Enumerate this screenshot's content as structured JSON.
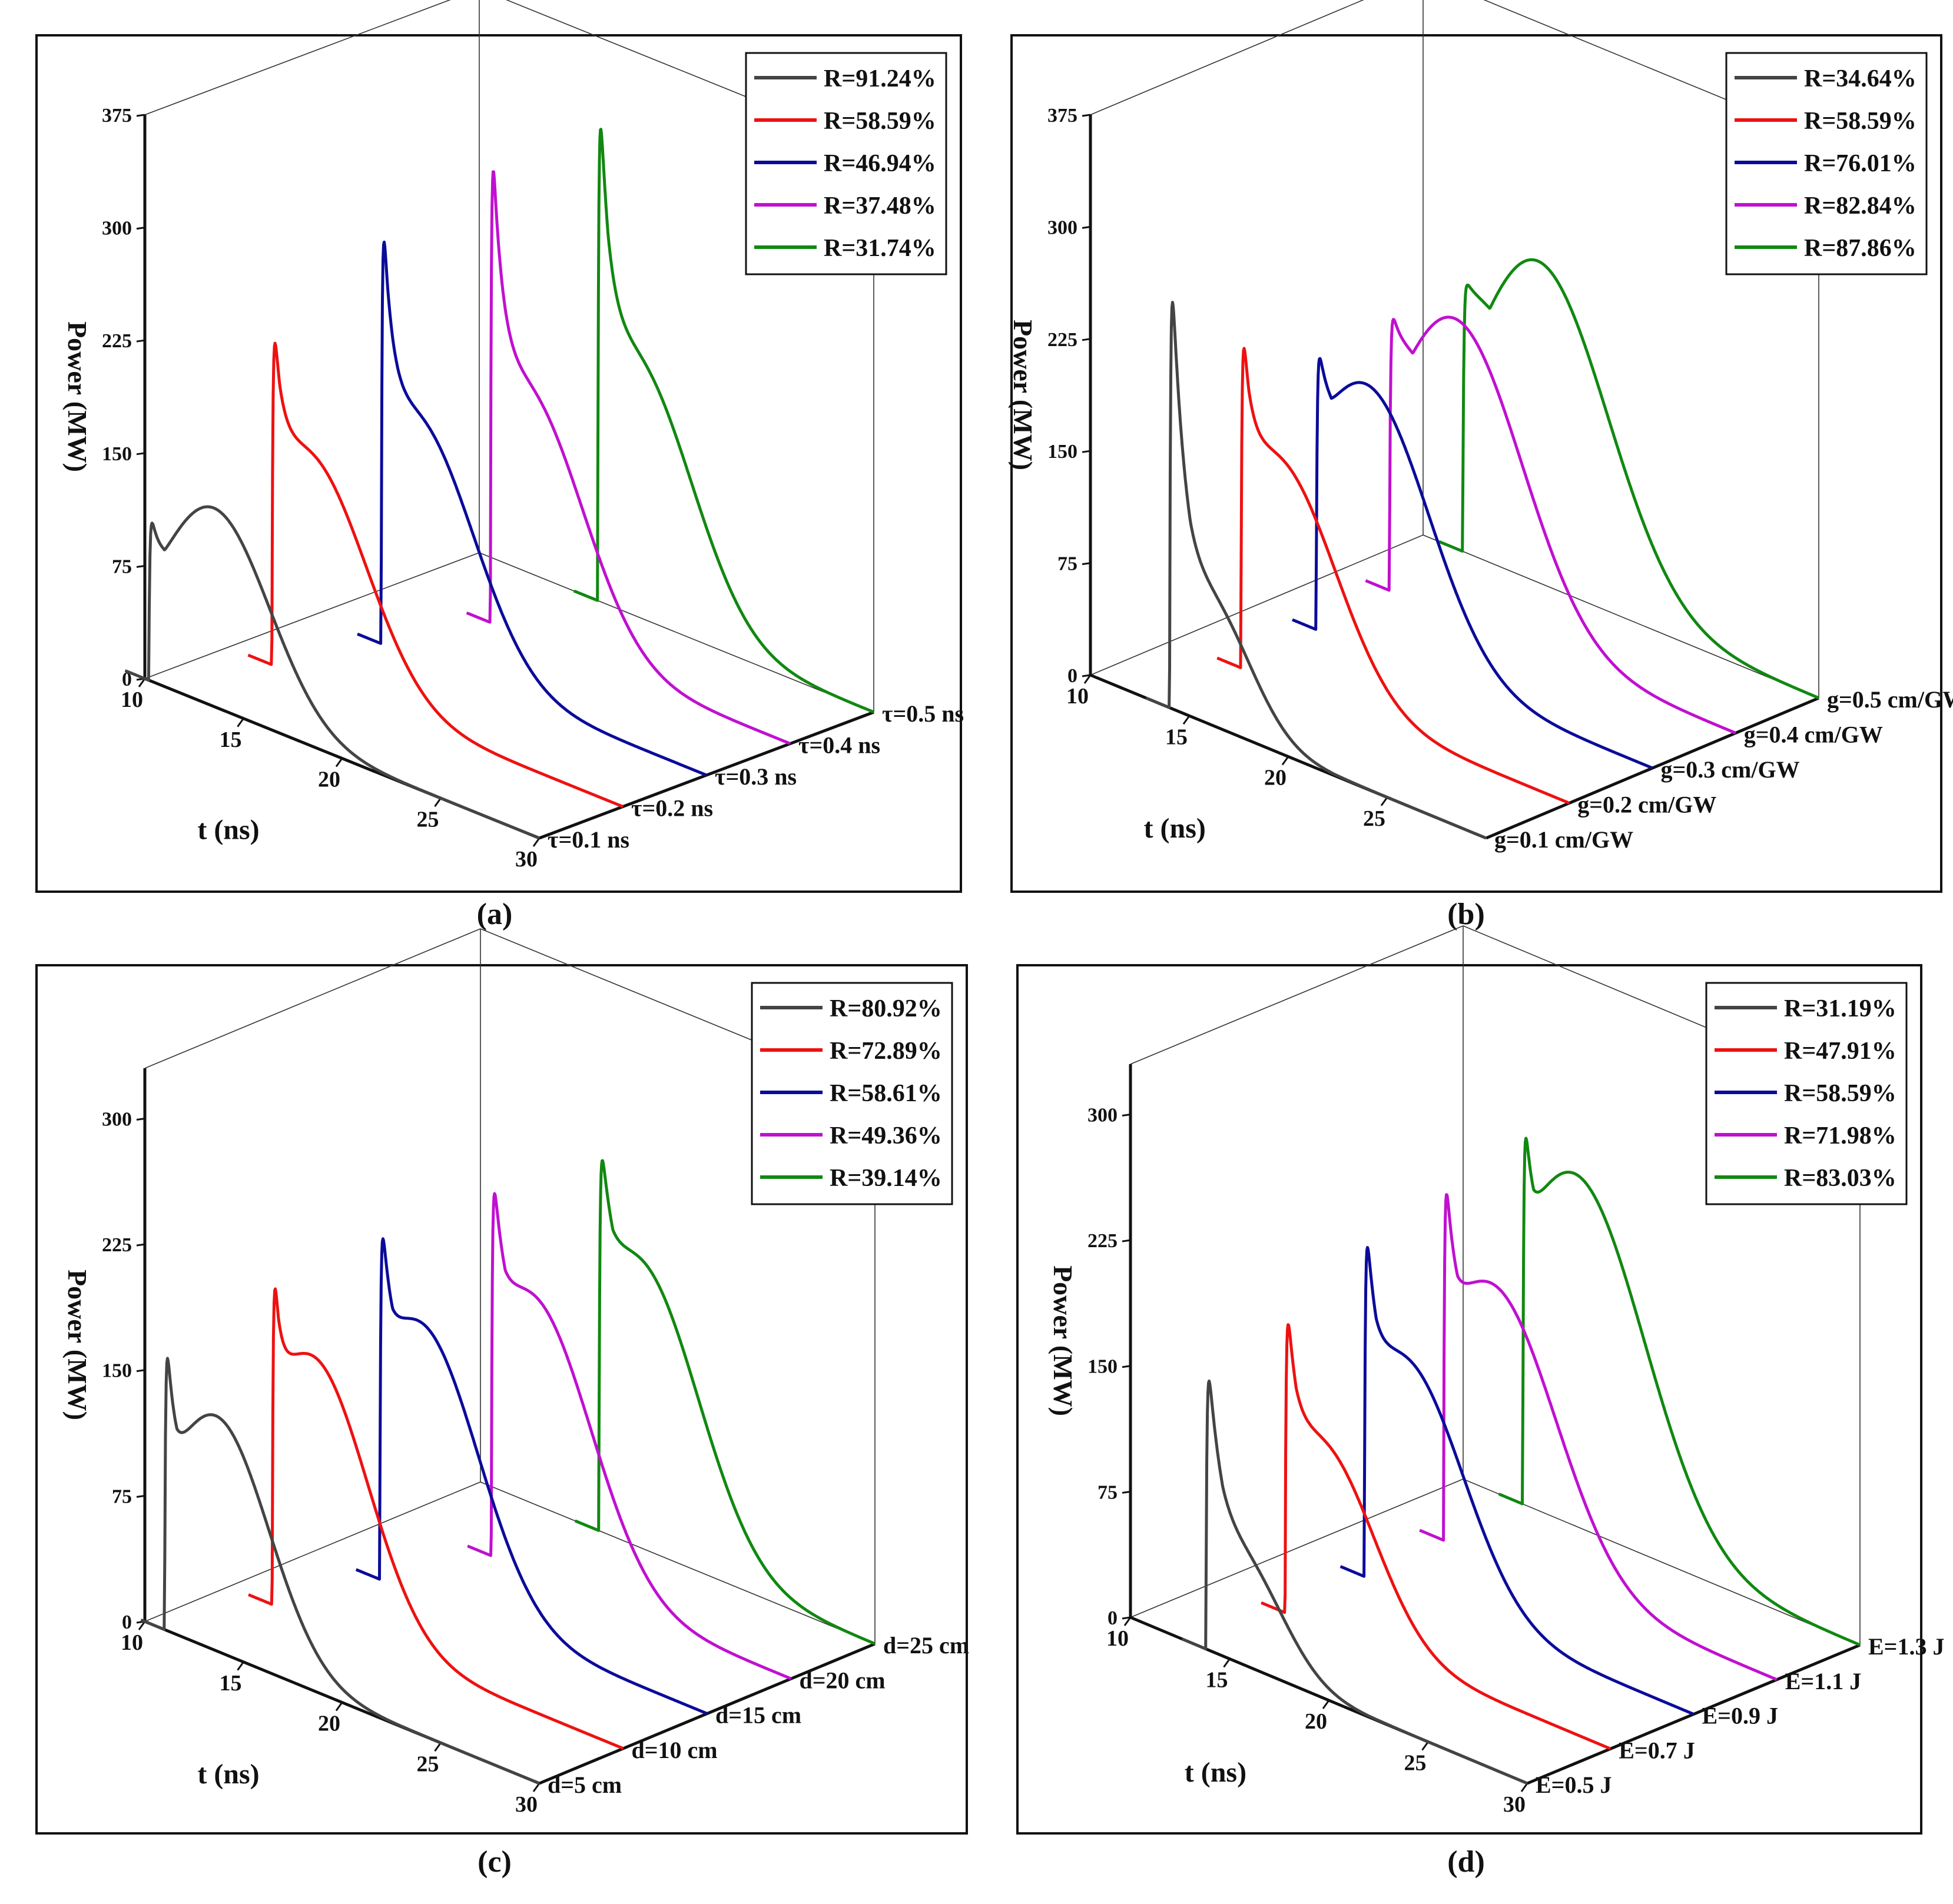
{
  "figure": {
    "panels": [
      {
        "label": "(a)",
        "legend": [
          "R=91.24%",
          "R=58.59%",
          "R=46.94%",
          "R=37.48%",
          "R=31.74%"
        ],
        "depth_labels": [
          "τ=0.1 ns",
          "τ=0.2 ns",
          "τ=0.3 ns",
          "τ=0.4 ns",
          "τ=0.5 ns"
        ]
      },
      {
        "label": "(b)",
        "legend": [
          "R=34.64%",
          "R=58.59%",
          "R=76.01%",
          "R=82.84%",
          "R=87.86%"
        ],
        "depth_labels": [
          "g=0.1 cm/GW",
          "g=0.2 cm/GW",
          "g=0.3 cm/GW",
          "g=0.4 cm/GW",
          "g=0.5 cm/GW"
        ]
      },
      {
        "label": "(c)",
        "legend": [
          "R=80.92%",
          "R=72.89%",
          "R=58.61%",
          "R=49.36%",
          "R=39.14%"
        ],
        "depth_labels": [
          "d=5 cm",
          "d=10 cm",
          "d=15 cm",
          "d=20 cm",
          "d=25 cm"
        ]
      },
      {
        "label": "(d)",
        "legend": [
          "R=31.19%",
          "R=47.91%",
          "R=58.59%",
          "R=71.98%",
          "R=83.03%"
        ],
        "depth_labels": [
          "E=0.5 J",
          "E=0.7 J",
          "E=0.9 J",
          "E=1.1 J",
          "E=1.3 J"
        ]
      }
    ]
  },
  "chart_data": [
    {
      "type": "line",
      "title": "",
      "xlabel": "t (ns)",
      "ylabel": "Power (MW)",
      "xlim": [
        10,
        30
      ],
      "ylim": [
        0,
        375
      ],
      "xticks": [
        "10",
        "15",
        "20",
        "25",
        "30"
      ],
      "yticks": [
        "0",
        "75",
        "150",
        "225",
        "300",
        "375"
      ],
      "grid": false,
      "legend_position": "top-right",
      "colors": [
        "#444444",
        "#ee1111",
        "#0b0b9a",
        "#c010d0",
        "#118811"
      ],
      "series": [
        {
          "name": "R=91.24%",
          "depth_label": "τ=0.1 ns",
          "shape": {
            "rise": 10.2,
            "peak": 130,
            "dip": 95,
            "hump": 132,
            "hump_t": 13.5,
            "hump_w": 4.0,
            "spike_decay": 0.25,
            "fall_w": 3.2
          }
        },
        {
          "name": "R=58.59%",
          "depth_label": "τ=0.2 ns",
          "shape": {
            "rise": 12.2,
            "peak": 270,
            "dip": 150,
            "hump": 150,
            "hump_t": 14.0,
            "hump_w": 4.2,
            "spike_decay": 0.5,
            "fall_w": 3.0
          }
        },
        {
          "name": "R=46.94%",
          "depth_label": "τ=0.3 ns",
          "shape": {
            "rise": 13.5,
            "peak": 345,
            "dip": 160,
            "hump": 160,
            "hump_t": 15.2,
            "hump_w": 4.2,
            "spike_decay": 0.5,
            "fall_w": 3.0
          }
        },
        {
          "name": "R=37.48%",
          "depth_label": "τ=0.4 ns",
          "shape": {
            "rise": 14.8,
            "peak": 385,
            "dip": 165,
            "hump": 165,
            "hump_t": 16.5,
            "hump_w": 4.2,
            "spike_decay": 0.55,
            "fall_w": 3.0
          }
        },
        {
          "name": "R=31.74%",
          "depth_label": "τ=0.5 ns",
          "shape": {
            "rise": 16.0,
            "peak": 395,
            "dip": 175,
            "hump": 170,
            "hump_t": 17.8,
            "hump_w": 4.2,
            "spike_decay": 0.6,
            "fall_w": 3.0
          }
        }
      ]
    },
    {
      "type": "line",
      "title": "",
      "xlabel": "t (ns)",
      "ylabel": "Power (MW)",
      "xlim": [
        10,
        30
      ],
      "ylim": [
        0,
        375
      ],
      "xticks": [
        "10",
        "15",
        "20",
        "25"
      ],
      "yticks": [
        "0",
        "75",
        "150",
        "225",
        "300",
        "375"
      ],
      "grid": false,
      "legend_position": "top-right",
      "colors": [
        "#444444",
        "#ee1111",
        "#0b0b9a",
        "#c010d0",
        "#118811"
      ],
      "series": [
        {
          "name": "R=34.64%",
          "depth_label": "g=0.1 cm/GW",
          "shape": {
            "rise": 14.0,
            "peak": 340,
            "dip": 80,
            "hump": 80,
            "hump_t": 16.0,
            "hump_w": 3.0,
            "spike_decay": 0.7,
            "fall_w": 2.4
          }
        },
        {
          "name": "R=58.59%",
          "depth_label": "g=0.2 cm/GW",
          "shape": {
            "rise": 13.4,
            "peak": 270,
            "dip": 150,
            "hump": 150,
            "hump_t": 15.2,
            "hump_w": 4.2,
            "spike_decay": 0.5,
            "fall_w": 3.0
          }
        },
        {
          "name": "R=76.01%",
          "depth_label": "g=0.3 cm/GW",
          "shape": {
            "rise": 13.0,
            "peak": 218,
            "dip": 170,
            "hump": 178,
            "hump_t": 15.5,
            "hump_w": 4.5,
            "spike_decay": 0.35,
            "fall_w": 3.2
          }
        },
        {
          "name": "R=82.84%",
          "depth_label": "g=0.4 cm/GW",
          "shape": {
            "rise": 12.5,
            "peak": 208,
            "dip": 180,
            "hump": 200,
            "hump_t": 15.8,
            "hump_w": 4.8,
            "spike_decay": 0.3,
            "fall_w": 3.4
          }
        },
        {
          "name": "R=87.86%",
          "depth_label": "g=0.5 cm/GW",
          "shape": {
            "rise": 12.0,
            "peak": 195,
            "dip": 185,
            "hump": 215,
            "hump_t": 15.8,
            "hump_w": 5.0,
            "spike_decay": 0.25,
            "fall_w": 3.6
          }
        }
      ]
    },
    {
      "type": "line",
      "title": "",
      "xlabel": "t (ns)",
      "ylabel": "Power (MW)",
      "xlim": [
        10,
        30
      ],
      "ylim": [
        0,
        330
      ],
      "xticks": [
        "10",
        "15",
        "20",
        "25",
        "30"
      ],
      "yticks": [
        "0",
        "75",
        "150",
        "225",
        "300"
      ],
      "grid": false,
      "legend_position": "top-right",
      "colors": [
        "#444444",
        "#ee1111",
        "#0b0b9a",
        "#c010d0",
        "#118811"
      ],
      "series": [
        {
          "name": "R=80.92%",
          "depth_label": "d=5 cm",
          "shape": {
            "rise": 11.0,
            "peak": 210,
            "dip": 115,
            "hump": 140,
            "hump_t": 13.6,
            "hump_w": 3.8,
            "spike_decay": 0.35,
            "fall_w": 3.0
          }
        },
        {
          "name": "R=72.89%",
          "depth_label": "d=10 cm",
          "shape": {
            "rise": 12.2,
            "peak": 245,
            "dip": 145,
            "hump": 158,
            "hump_t": 14.2,
            "hump_w": 4.0,
            "spike_decay": 0.35,
            "fall_w": 3.0
          }
        },
        {
          "name": "R=58.61%",
          "depth_label": "d=15 cm",
          "shape": {
            "rise": 13.4,
            "peak": 255,
            "dip": 165,
            "hump": 163,
            "hump_t": 15.4,
            "hump_w": 4.2,
            "spike_decay": 0.4,
            "fall_w": 3.0
          }
        },
        {
          "name": "R=49.36%",
          "depth_label": "d=20 cm",
          "shape": {
            "rise": 14.8,
            "peak": 265,
            "dip": 170,
            "hump": 165,
            "hump_t": 16.8,
            "hump_w": 4.3,
            "spike_decay": 0.5,
            "fall_w": 3.0
          }
        },
        {
          "name": "R=39.14%",
          "depth_label": "d=25 cm",
          "shape": {
            "rise": 16.0,
            "peak": 265,
            "dip": 175,
            "hump": 170,
            "hump_t": 18.0,
            "hump_w": 4.3,
            "spike_decay": 0.6,
            "fall_w": 3.0
          }
        }
      ]
    },
    {
      "type": "line",
      "title": "",
      "xlabel": "t (ns)",
      "ylabel": "Power (MW)",
      "xlim": [
        10,
        30
      ],
      "ylim": [
        0,
        330
      ],
      "xticks": [
        "10",
        "15",
        "20",
        "25",
        "30"
      ],
      "yticks": [
        "0",
        "75",
        "150",
        "225",
        "300"
      ],
      "grid": false,
      "legend_position": "top-right",
      "colors": [
        "#444444",
        "#ee1111",
        "#0b0b9a",
        "#c010d0",
        "#118811"
      ],
      "series": [
        {
          "name": "R=31.19%",
          "depth_label": "E=0.5 J",
          "shape": {
            "rise": 13.8,
            "peak": 195,
            "dip": 60,
            "hump": 60,
            "hump_t": 15.6,
            "hump_w": 3.0,
            "spike_decay": 0.8,
            "fall_w": 2.4
          }
        },
        {
          "name": "R=47.91%",
          "depth_label": "E=0.7 J",
          "shape": {
            "rise": 13.6,
            "peak": 215,
            "dip": 110,
            "hump": 110,
            "hump_t": 15.4,
            "hump_w": 3.8,
            "spike_decay": 0.55,
            "fall_w": 2.8
          }
        },
        {
          "name": "R=58.59%",
          "depth_label": "E=0.9 J",
          "shape": {
            "rise": 13.4,
            "peak": 245,
            "dip": 140,
            "hump": 140,
            "hump_t": 15.4,
            "hump_w": 4.2,
            "spike_decay": 0.5,
            "fall_w": 3.0
          }
        },
        {
          "name": "R=71.98%",
          "depth_label": "E=1.1 J",
          "shape": {
            "rise": 13.2,
            "peak": 260,
            "dip": 160,
            "hump": 165,
            "hump_t": 15.6,
            "hump_w": 4.6,
            "spike_decay": 0.4,
            "fall_w": 3.2
          }
        },
        {
          "name": "R=83.03%",
          "depth_label": "E=1.3 J",
          "shape": {
            "rise": 13.0,
            "peak": 275,
            "dip": 195,
            "hump": 210,
            "hump_t": 15.6,
            "hump_w": 5.0,
            "spike_decay": 0.3,
            "fall_w": 3.4
          }
        }
      ]
    }
  ]
}
